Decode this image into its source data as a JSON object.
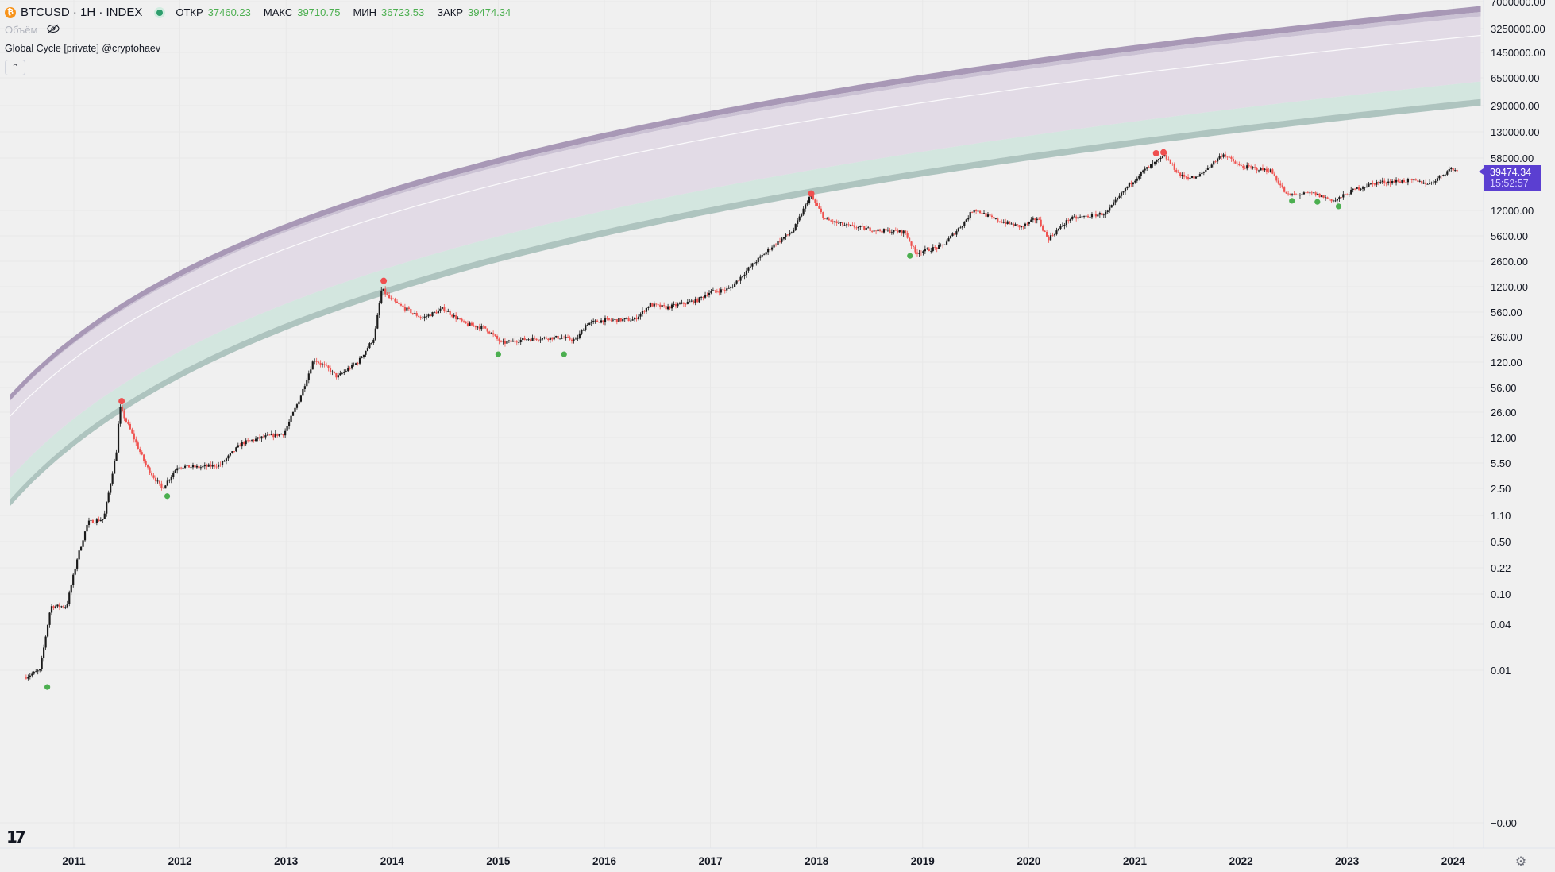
{
  "header": {
    "coin_icon": "bitcoin-icon",
    "coin_glyph": "₿",
    "symbol": "BTCUSD · 1H · INDEX",
    "status": "market-status-dot",
    "ohlc": [
      {
        "key": "ОТКР",
        "value": "37460.23"
      },
      {
        "key": "МАКС",
        "value": "39710.75"
      },
      {
        "key": "МИН",
        "value": "36723.53"
      },
      {
        "key": "ЗАКР",
        "value": "39474.34"
      }
    ],
    "volume_label": "Объём",
    "hide_icon": "eye-crossed-icon",
    "indicator_name": "Global Cycle [private] @cryptohaev",
    "collapse_icon": "chevron-up-icon",
    "collapse_glyph": "⌃"
  },
  "price_tag": {
    "price": "39474.34",
    "countdown": "15:52:57",
    "color": "#5b3fd1"
  },
  "logo_text": "17",
  "settings_icon": "gear-icon",
  "settings_glyph": "⚙",
  "colors": {
    "background": "#f0f0f0",
    "band_top": "#a898b6",
    "band_upper": "#cbc2d4",
    "band_mid": "#e2dbe6",
    "band_lower": "#d3e6df",
    "band_bottom": "#aec4bf",
    "up_candle": "#1a1a1a",
    "down_candle": "#ef5350",
    "top_marker": "#ef4f4f",
    "bottom_marker": "#4caf50",
    "axis_text": "#131722"
  },
  "chart_data": {
    "type": "candlestick",
    "scale": "log",
    "title": "",
    "x_ticks": [
      "2011",
      "2012",
      "2013",
      "2014",
      "2015",
      "2016",
      "2017",
      "2018",
      "2019",
      "2020",
      "2021",
      "2022",
      "2023",
      "2024"
    ],
    "y_ticks": [
      "7000000.00",
      "3250000.00",
      "1450000.00",
      "650000.00",
      "290000.00",
      "130000.00",
      "58000.00",
      "12000.00",
      "5600.00",
      "2600.00",
      "1200.00",
      "560.00",
      "260.00",
      "120.00",
      "56.00",
      "26.00",
      "12.00",
      "5.50",
      "2.50",
      "1.10",
      "0.50",
      "0.22",
      "0.10",
      "0.04",
      "0.01",
      "−0.00"
    ],
    "price_path": [
      {
        "t": 2010.55,
        "p": 0.008
      },
      {
        "t": 2010.7,
        "p": 0.01
      },
      {
        "t": 2010.8,
        "p": 0.07
      },
      {
        "t": 2010.95,
        "p": 0.07
      },
      {
        "t": 2011.05,
        "p": 0.3
      },
      {
        "t": 2011.15,
        "p": 0.9
      },
      {
        "t": 2011.3,
        "p": 1.0
      },
      {
        "t": 2011.42,
        "p": 8
      },
      {
        "t": 2011.45,
        "p": 30
      },
      {
        "t": 2011.55,
        "p": 15
      },
      {
        "t": 2011.7,
        "p": 5
      },
      {
        "t": 2011.85,
        "p": 2.5
      },
      {
        "t": 2012.0,
        "p": 5
      },
      {
        "t": 2012.2,
        "p": 4.8
      },
      {
        "t": 2012.4,
        "p": 5.2
      },
      {
        "t": 2012.6,
        "p": 10
      },
      {
        "t": 2012.8,
        "p": 12
      },
      {
        "t": 2013.0,
        "p": 13.5
      },
      {
        "t": 2013.15,
        "p": 40
      },
      {
        "t": 2013.28,
        "p": 130
      },
      {
        "t": 2013.4,
        "p": 100
      },
      {
        "t": 2013.5,
        "p": 75
      },
      {
        "t": 2013.7,
        "p": 120
      },
      {
        "t": 2013.85,
        "p": 250
      },
      {
        "t": 2013.92,
        "p": 1100
      },
      {
        "t": 2014.0,
        "p": 800
      },
      {
        "t": 2014.1,
        "p": 650
      },
      {
        "t": 2014.3,
        "p": 450
      },
      {
        "t": 2014.5,
        "p": 600
      },
      {
        "t": 2014.7,
        "p": 380
      },
      {
        "t": 2014.9,
        "p": 330
      },
      {
        "t": 2015.05,
        "p": 210
      },
      {
        "t": 2015.3,
        "p": 240
      },
      {
        "t": 2015.6,
        "p": 250
      },
      {
        "t": 2015.75,
        "p": 230
      },
      {
        "t": 2015.85,
        "p": 380
      },
      {
        "t": 2016.0,
        "p": 420
      },
      {
        "t": 2016.3,
        "p": 430
      },
      {
        "t": 2016.45,
        "p": 680
      },
      {
        "t": 2016.6,
        "p": 620
      },
      {
        "t": 2016.9,
        "p": 780
      },
      {
        "t": 2017.0,
        "p": 980
      },
      {
        "t": 2017.2,
        "p": 1100
      },
      {
        "t": 2017.4,
        "p": 2200
      },
      {
        "t": 2017.6,
        "p": 4000
      },
      {
        "t": 2017.8,
        "p": 6500
      },
      {
        "t": 2017.96,
        "p": 19000
      },
      {
        "t": 2018.1,
        "p": 9000
      },
      {
        "t": 2018.3,
        "p": 7500
      },
      {
        "t": 2018.6,
        "p": 6500
      },
      {
        "t": 2018.85,
        "p": 6200
      },
      {
        "t": 2018.95,
        "p": 3300
      },
      {
        "t": 2019.2,
        "p": 4000
      },
      {
        "t": 2019.4,
        "p": 8000
      },
      {
        "t": 2019.5,
        "p": 12500
      },
      {
        "t": 2019.7,
        "p": 9000
      },
      {
        "t": 2019.95,
        "p": 7200
      },
      {
        "t": 2020.1,
        "p": 9500
      },
      {
        "t": 2020.2,
        "p": 5000
      },
      {
        "t": 2020.4,
        "p": 9200
      },
      {
        "t": 2020.75,
        "p": 11000
      },
      {
        "t": 2020.95,
        "p": 25000
      },
      {
        "t": 2021.1,
        "p": 40000
      },
      {
        "t": 2021.3,
        "p": 62000
      },
      {
        "t": 2021.45,
        "p": 34000
      },
      {
        "t": 2021.6,
        "p": 32000
      },
      {
        "t": 2021.85,
        "p": 67000
      },
      {
        "t": 2022.0,
        "p": 46000
      },
      {
        "t": 2022.3,
        "p": 40000
      },
      {
        "t": 2022.45,
        "p": 19000
      },
      {
        "t": 2022.7,
        "p": 20000
      },
      {
        "t": 2022.9,
        "p": 16000
      },
      {
        "t": 2023.1,
        "p": 23000
      },
      {
        "t": 2023.3,
        "p": 28000
      },
      {
        "t": 2023.6,
        "p": 29500
      },
      {
        "t": 2023.8,
        "p": 27000
      },
      {
        "t": 2024.0,
        "p": 43000
      },
      {
        "t": 2024.05,
        "p": 39474
      }
    ],
    "bands": {
      "model": "price = exp(a + b*ln(t - 2009.0))",
      "top": {
        "a": 1.94,
        "b": 4.95
      },
      "upper": {
        "a": 1.94,
        "b": 4.9
      },
      "mid": {
        "a": 1.5,
        "b": 4.85
      },
      "lower": {
        "a": -0.45,
        "b": 5.05
      },
      "bottom": {
        "a": -1.12,
        "b": 5.1
      }
    },
    "top_signals": [
      {
        "t": 2011.45,
        "p": 36
      },
      {
        "t": 2013.92,
        "p": 1400
      },
      {
        "t": 2017.95,
        "p": 20000
      },
      {
        "t": 2021.2,
        "p": 68000
      },
      {
        "t": 2021.27,
        "p": 70000
      }
    ],
    "bottom_signals": [
      {
        "t": 2010.75,
        "p": 0.006
      },
      {
        "t": 2011.88,
        "p": 2.0
      },
      {
        "t": 2015.0,
        "p": 150
      },
      {
        "t": 2015.62,
        "p": 150
      },
      {
        "t": 2018.88,
        "p": 3000
      },
      {
        "t": 2022.48,
        "p": 16000
      },
      {
        "t": 2022.72,
        "p": 15500
      },
      {
        "t": 2022.92,
        "p": 13500
      }
    ]
  }
}
